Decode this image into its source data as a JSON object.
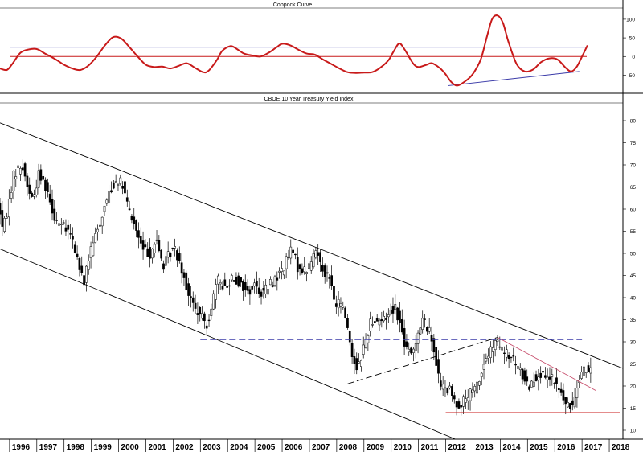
{
  "colors": {
    "coppock_line": "#c81a1a",
    "reference_upper": "#3a3aa8",
    "reference_zero": "#c81a1a",
    "coppock_trend": "#3a3aa8",
    "candle_up": "#ffffff",
    "candle_down": "#000000",
    "channel": "#000000",
    "dashed_resistance": "#3a3aa8",
    "downtrend_line": "#c8506e",
    "support_line": "#c81a1a"
  },
  "chart_data": [
    {
      "type": "line",
      "title": "Coppock Curve",
      "ylim": [
        -90,
        130
      ],
      "yticks": [
        "100",
        "50",
        "0",
        "-50"
      ],
      "x_range": [
        1995.65,
        2018.5
      ],
      "reference_lines": [
        {
          "y": 25,
          "color_key": "reference_upper"
        },
        {
          "y": 0,
          "color_key": "reference_zero"
        }
      ],
      "trendline": {
        "from": [
          2012.1,
          -78
        ],
        "to": [
          2016.9,
          -40
        ]
      },
      "series": [
        {
          "points": [
            [
              1995.65,
              -32
            ],
            [
              1995.9,
              -36
            ],
            [
              1996.1,
              -20
            ],
            [
              1996.4,
              10
            ],
            [
              1996.7,
              19
            ],
            [
              1997.0,
              20
            ],
            [
              1997.3,
              8
            ],
            [
              1997.7,
              -8
            ],
            [
              1998.0,
              -22
            ],
            [
              1998.3,
              -32
            ],
            [
              1998.6,
              -36
            ],
            [
              1998.9,
              -24
            ],
            [
              1999.2,
              0
            ],
            [
              1999.5,
              30
            ],
            [
              1999.8,
              52
            ],
            [
              2000.1,
              48
            ],
            [
              2000.4,
              25
            ],
            [
              2000.7,
              0
            ],
            [
              2001.0,
              -22
            ],
            [
              2001.3,
              -28
            ],
            [
              2001.6,
              -27
            ],
            [
              2001.9,
              -32
            ],
            [
              2002.2,
              -25
            ],
            [
              2002.5,
              -18
            ],
            [
              2002.8,
              -30
            ],
            [
              2003.1,
              -42
            ],
            [
              2003.3,
              -38
            ],
            [
              2003.6,
              -10
            ],
            [
              2003.8,
              15
            ],
            [
              2004.1,
              28
            ],
            [
              2004.3,
              22
            ],
            [
              2004.6,
              8
            ],
            [
              2004.9,
              3
            ],
            [
              2005.2,
              0
            ],
            [
              2005.5,
              10
            ],
            [
              2005.8,
              25
            ],
            [
              2006.0,
              34
            ],
            [
              2006.3,
              30
            ],
            [
              2006.6,
              18
            ],
            [
              2006.9,
              8
            ],
            [
              2007.2,
              5
            ],
            [
              2007.5,
              -8
            ],
            [
              2007.8,
              -20
            ],
            [
              2008.1,
              -32
            ],
            [
              2008.4,
              -42
            ],
            [
              2008.7,
              -44
            ],
            [
              2009.0,
              -43
            ],
            [
              2009.3,
              -42
            ],
            [
              2009.6,
              -30
            ],
            [
              2009.9,
              -10
            ],
            [
              2010.1,
              15
            ],
            [
              2010.3,
              35
            ],
            [
              2010.5,
              18
            ],
            [
              2010.8,
              -18
            ],
            [
              2011.0,
              -28
            ],
            [
              2011.3,
              -22
            ],
            [
              2011.5,
              -18
            ],
            [
              2011.8,
              -32
            ],
            [
              2012.0,
              -48
            ],
            [
              2012.2,
              -68
            ],
            [
              2012.4,
              -78
            ],
            [
              2012.6,
              -72
            ],
            [
              2012.9,
              -55
            ],
            [
              2013.1,
              -35
            ],
            [
              2013.3,
              -5
            ],
            [
              2013.5,
              50
            ],
            [
              2013.7,
              100
            ],
            [
              2013.9,
              110
            ],
            [
              2014.1,
              90
            ],
            [
              2014.3,
              40
            ],
            [
              2014.6,
              -20
            ],
            [
              2014.9,
              -40
            ],
            [
              2015.2,
              -35
            ],
            [
              2015.5,
              -15
            ],
            [
              2015.8,
              -5
            ],
            [
              2016.1,
              -8
            ],
            [
              2016.4,
              -30
            ],
            [
              2016.6,
              -40
            ],
            [
              2016.8,
              -28
            ],
            [
              2017.0,
              0
            ],
            [
              2017.2,
              30
            ]
          ]
        }
      ]
    },
    {
      "type": "candlestick",
      "title": "CBOE 10 Year Treasury Yield Index",
      "ylim": [
        8,
        84
      ],
      "yticks": [
        "80",
        "75",
        "70",
        "65",
        "60",
        "55",
        "50",
        "45",
        "40",
        "35",
        "30",
        "25",
        "20",
        "15",
        "10"
      ],
      "xticks": [
        "1996",
        "1997",
        "1998",
        "1999",
        "2000",
        "2001",
        "2002",
        "2003",
        "2004",
        "2005",
        "2006",
        "2007",
        "2008",
        "2009",
        "2010",
        "2011",
        "2012",
        "2013",
        "2014",
        "2015",
        "2016",
        "2017",
        "2018"
      ],
      "x_range": [
        1995.65,
        2018.5
      ],
      "trendlines": [
        {
          "kind": "channel_upper",
          "from": [
            1995.65,
            79.5
          ],
          "to": [
            2018.5,
            24
          ]
        },
        {
          "kind": "channel_lower",
          "from": [
            1995.65,
            51
          ],
          "to": [
            2012.35,
            8
          ]
        },
        {
          "kind": "resistance_dashed",
          "from": [
            2003.0,
            30.5
          ],
          "to": [
            2017.0,
            30.5
          ]
        },
        {
          "kind": "rising_dashed",
          "from": [
            2008.4,
            20.5
          ],
          "to": [
            2013.9,
            31
          ]
        },
        {
          "kind": "downtrend",
          "from": [
            2013.9,
            31
          ],
          "to": [
            2017.5,
            19
          ]
        },
        {
          "kind": "support",
          "from": [
            2012.0,
            14
          ],
          "to": [
            2018.4,
            14
          ]
        }
      ],
      "anchors": [
        [
          1995.65,
          61
        ],
        [
          1995.8,
          55
        ],
        [
          1996.0,
          61
        ],
        [
          1996.2,
          68
        ],
        [
          1996.5,
          70
        ],
        [
          1996.7,
          65
        ],
        [
          1996.9,
          62
        ],
        [
          1997.1,
          68
        ],
        [
          1997.4,
          65
        ],
        [
          1997.7,
          58
        ],
        [
          1998.0,
          56
        ],
        [
          1998.3,
          54
        ],
        [
          1998.6,
          47
        ],
        [
          1998.75,
          43
        ],
        [
          1998.9,
          48
        ],
        [
          1999.1,
          52
        ],
        [
          1999.4,
          58
        ],
        [
          1999.7,
          64
        ],
        [
          2000.0,
          67
        ],
        [
          2000.2,
          65
        ],
        [
          2000.4,
          60
        ],
        [
          2000.7,
          55
        ],
        [
          2000.9,
          51
        ],
        [
          2001.2,
          50
        ],
        [
          2001.4,
          53
        ],
        [
          2001.7,
          47
        ],
        [
          2001.9,
          50
        ],
        [
          2002.1,
          51
        ],
        [
          2002.3,
          48
        ],
        [
          2002.6,
          41
        ],
        [
          2002.8,
          38
        ],
        [
          2003.0,
          36
        ],
        [
          2003.3,
          34
        ],
        [
          2003.5,
          40
        ],
        [
          2003.7,
          44
        ],
        [
          2004.0,
          42
        ],
        [
          2004.2,
          45
        ],
        [
          2004.5,
          43
        ],
        [
          2004.8,
          41
        ],
        [
          2005.0,
          43
        ],
        [
          2005.3,
          41
        ],
        [
          2005.6,
          43
        ],
        [
          2005.9,
          45
        ],
        [
          2006.1,
          47
        ],
        [
          2006.4,
          51
        ],
        [
          2006.6,
          47
        ],
        [
          2006.9,
          46
        ],
        [
          2007.1,
          48
        ],
        [
          2007.3,
          51
        ],
        [
          2007.5,
          47
        ],
        [
          2007.8,
          44
        ],
        [
          2008.0,
          38
        ],
        [
          2008.2,
          39
        ],
        [
          2008.4,
          35
        ],
        [
          2008.6,
          27
        ],
        [
          2008.8,
          24
        ],
        [
          2009.0,
          28
        ],
        [
          2009.3,
          35
        ],
        [
          2009.5,
          35
        ],
        [
          2009.8,
          35
        ],
        [
          2010.0,
          37
        ],
        [
          2010.2,
          38
        ],
        [
          2010.4,
          33
        ],
        [
          2010.6,
          28
        ],
        [
          2010.8,
          27
        ],
        [
          2011.0,
          32
        ],
        [
          2011.2,
          35
        ],
        [
          2011.4,
          33
        ],
        [
          2011.6,
          29
        ],
        [
          2011.8,
          21
        ],
        [
          2012.0,
          19
        ],
        [
          2012.2,
          19
        ],
        [
          2012.4,
          16
        ],
        [
          2012.6,
          16
        ],
        [
          2012.9,
          18
        ],
        [
          2013.1,
          19
        ],
        [
          2013.3,
          22
        ],
        [
          2013.5,
          26
        ],
        [
          2013.7,
          28
        ],
        [
          2013.9,
          30
        ],
        [
          2014.1,
          28
        ],
        [
          2014.3,
          27
        ],
        [
          2014.5,
          26
        ],
        [
          2014.7,
          24
        ],
        [
          2014.9,
          22
        ],
        [
          2015.1,
          20
        ],
        [
          2015.3,
          22
        ],
        [
          2015.5,
          23
        ],
        [
          2015.7,
          21
        ],
        [
          2015.9,
          22
        ],
        [
          2016.1,
          20
        ],
        [
          2016.3,
          18
        ],
        [
          2016.5,
          15
        ],
        [
          2016.7,
          16
        ],
        [
          2016.9,
          22
        ],
        [
          2017.1,
          24
        ],
        [
          2017.3,
          23
        ]
      ]
    }
  ]
}
